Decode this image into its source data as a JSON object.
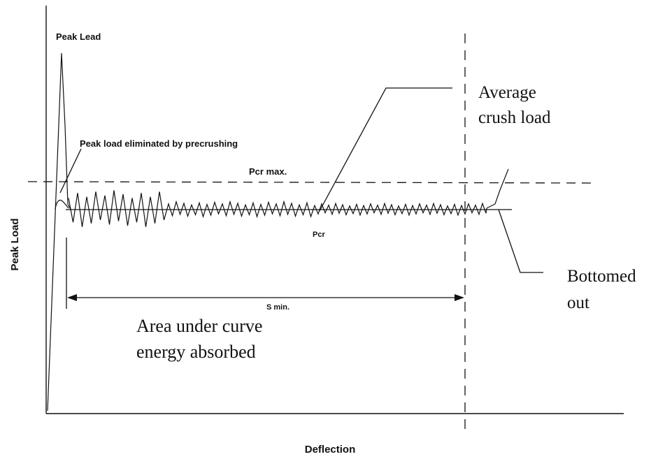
{
  "axes": {
    "x_label": "Deflection",
    "y_label": "Peak Load"
  },
  "annotations": {
    "peak_load": "Peak Lead",
    "peak_eliminated": "Peak load eliminated by precrushing",
    "pcr_max": "Pcr max.",
    "pcr": "Pcr",
    "s_min": "S min.",
    "average_crush_line1": "Average",
    "average_crush_line2": "crush load",
    "bottomed_line1": "Bottomed",
    "bottomed_line2": "out",
    "area_line1": "Area under curve",
    "area_line2": "energy absorbed"
  },
  "colors": {
    "ink": "#111111",
    "background": "#ffffff"
  }
}
